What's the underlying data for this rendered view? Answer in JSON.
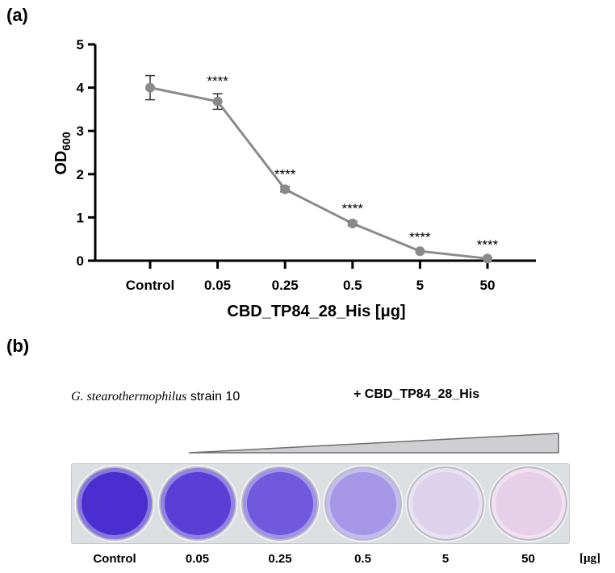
{
  "panel_a_label": "(a)",
  "panel_b_label": "(b)",
  "chart_data": {
    "type": "line",
    "title": "",
    "ylabel": "OD",
    "ylabel_subscript": "600",
    "xlabel": "CBD_TP84_28_His [μg]",
    "categories": [
      "Control",
      "0.05",
      "0.25",
      "0.5",
      "5",
      "50"
    ],
    "ylim": [
      0,
      5
    ],
    "yticks": [
      "0",
      "1",
      "2",
      "3",
      "4",
      "5"
    ],
    "series": [
      {
        "name": "OD600",
        "values": [
          4.0,
          3.68,
          1.65,
          0.86,
          0.22,
          0.05
        ],
        "errors": [
          0.28,
          0.18,
          0.06,
          0.05,
          0.03,
          0.02
        ],
        "color": "#8a8a8a"
      }
    ],
    "annotations": [
      "",
      "****",
      "****",
      "****",
      "****",
      "****"
    ]
  },
  "panel_b": {
    "strain_species": "G. stearothermophilus",
    "strain_rest": " strain 10",
    "treatment": "+ CBD_TP84_28_His",
    "wells": [
      {
        "label": "Control",
        "color": "#4a2ed0"
      },
      {
        "label": "0.05",
        "color": "#5a3ed6"
      },
      {
        "label": "0.25",
        "color": "#7059dc"
      },
      {
        "label": "0.5",
        "color": "#a597e6"
      },
      {
        "label": "5",
        "color": "#dcd2ec"
      },
      {
        "label": "50",
        "color": "#e8cfe8"
      }
    ],
    "unit": "[μg]"
  }
}
